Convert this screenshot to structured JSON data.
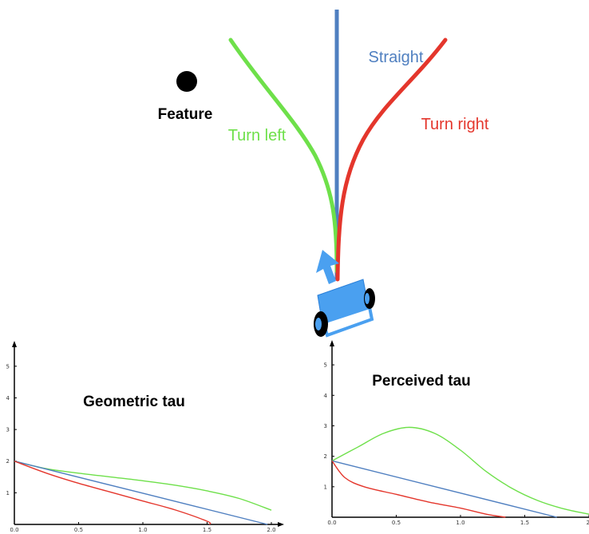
{
  "diagram": {
    "feature_label": "Feature",
    "straight_label": "Straight",
    "turn_left_label": "Turn left",
    "turn_right_label": "Turn right",
    "colors": {
      "straight": "#4f7fc0",
      "left": "#6ee04a",
      "right": "#e4362c",
      "robot": "#4aa0f0",
      "feature": "#000000"
    }
  },
  "chart_data": [
    {
      "type": "line",
      "title": "Geometric tau",
      "xlim": [
        0,
        2.0
      ],
      "ylim": [
        0,
        5.5
      ],
      "xticks": [
        "0.0",
        "0.5",
        "1.0",
        "1.5",
        "2.0"
      ],
      "yticks": [
        "1",
        "2",
        "3",
        "4",
        "5"
      ],
      "series": [
        {
          "color": "#6ee04a",
          "x": [
            0,
            0.25,
            0.5,
            0.75,
            1.0,
            1.25,
            1.5,
            1.75,
            2.0
          ],
          "y": [
            2.0,
            1.76,
            1.62,
            1.5,
            1.38,
            1.24,
            1.06,
            0.82,
            0.45
          ]
        },
        {
          "color": "#4f7fc0",
          "x": [
            0,
            1.97
          ],
          "y": [
            2.0,
            0.0
          ]
        },
        {
          "color": "#e4362c",
          "x": [
            0,
            0.25,
            0.5,
            0.75,
            1.0,
            1.25,
            1.5,
            1.52
          ],
          "y": [
            2.0,
            1.62,
            1.3,
            1.02,
            0.74,
            0.46,
            0.1,
            0.0
          ]
        }
      ]
    },
    {
      "type": "line",
      "title": "Perceived tau",
      "xlim": [
        0,
        2.0
      ],
      "ylim": [
        0,
        5.5
      ],
      "xticks": [
        "0.0",
        "0.5",
        "1.0",
        "1.5",
        "2."
      ],
      "yticks": [
        "1",
        "2",
        "3",
        "4",
        "5"
      ],
      "series": [
        {
          "color": "#6ee04a",
          "x": [
            0,
            0.2,
            0.4,
            0.6,
            0.8,
            1.0,
            1.2,
            1.4,
            1.6,
            1.8,
            2.0
          ],
          "y": [
            1.85,
            2.3,
            2.75,
            2.95,
            2.75,
            2.2,
            1.5,
            0.95,
            0.55,
            0.28,
            0.1
          ]
        },
        {
          "color": "#4f7fc0",
          "x": [
            0,
            1.75
          ],
          "y": [
            1.85,
            0.0
          ]
        },
        {
          "color": "#e4362c",
          "x": [
            0,
            0.1,
            0.25,
            0.5,
            0.75,
            1.0,
            1.2,
            1.35
          ],
          "y": [
            1.85,
            1.3,
            1.0,
            0.75,
            0.5,
            0.3,
            0.1,
            0.0
          ]
        }
      ]
    }
  ]
}
